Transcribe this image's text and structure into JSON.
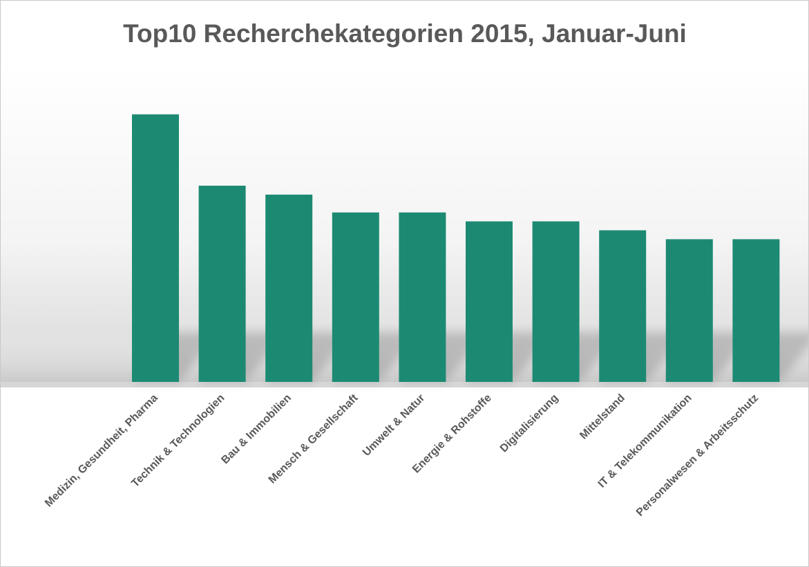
{
  "chart_data": {
    "type": "bar",
    "title": "Top10 Recherchekategorien 2015, Januar-Juni",
    "xlabel": "",
    "ylabel": "",
    "categories": [
      "Medizin, Gesundheit, Pharma",
      "Technik & Technologien",
      "Bau & Immobilien",
      "Mensch & Gesellschaft",
      "Umwelt & Natur",
      "Energie & Rohstoffe",
      "Digitalisierung",
      "Mittelstand",
      "IT & Telekommunikation",
      "Personalwesen & Arbeitsschutz"
    ],
    "values": [
      30,
      22,
      21,
      19,
      19,
      18,
      18,
      17,
      16,
      16
    ],
    "ylim": [
      0,
      35
    ],
    "grid": false,
    "legend": "none",
    "bar_color": "#1c8a72",
    "text_color": "#595959"
  }
}
